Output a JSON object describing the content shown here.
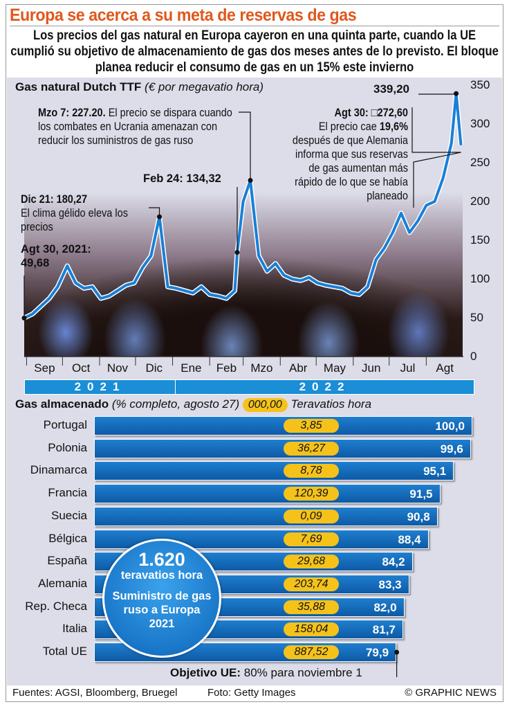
{
  "title": "Europa se acerca a su meta de reservas de gas",
  "subtitle": "Los precios del gas natural en Europa cayeron en una quinta parte, cuando la UE cumplió su objetivo de almacenamiento de gas dos meses antes de lo previsto. El bloque planea reducir el consumo de gas en un 15% este invierno",
  "colors": {
    "title": "#e0581c",
    "line": "#1a7fd6",
    "year_bar": "#1a8ed6",
    "bars": "#1565b0",
    "pill": "#f5c21a"
  },
  "chart_data": [
    {
      "type": "line",
      "title": "Gas natural Dutch TTF",
      "unit": "(€ por megavatio hora)",
      "ylim": [
        0,
        350
      ],
      "yticks": [
        "0",
        "50",
        "100",
        "150",
        "200",
        "250",
        "300",
        "350"
      ],
      "xlim": [
        "2021-08-30",
        "2022-09-01"
      ],
      "months": [
        "Sep",
        "Oct",
        "Nov",
        "Dic",
        "Ene",
        "Feb",
        "Mzo",
        "Abr",
        "May",
        "Jun",
        "Jul",
        "Agt"
      ],
      "years": [
        "2021",
        "2022"
      ],
      "series": [
        {
          "points": [
            [
              "2021-08-30",
              49.68
            ],
            [
              "2021-09-06",
              55
            ],
            [
              "2021-09-13",
              65
            ],
            [
              "2021-09-20",
              75
            ],
            [
              "2021-09-27",
              90
            ],
            [
              "2021-10-05",
              117
            ],
            [
              "2021-10-12",
              95
            ],
            [
              "2021-10-19",
              88
            ],
            [
              "2021-10-26",
              90
            ],
            [
              "2021-11-02",
              75
            ],
            [
              "2021-11-09",
              78
            ],
            [
              "2021-11-16",
              85
            ],
            [
              "2021-11-23",
              92
            ],
            [
              "2021-11-30",
              95
            ],
            [
              "2021-12-07",
              115
            ],
            [
              "2021-12-14",
              130
            ],
            [
              "2021-12-21",
              180.27
            ],
            [
              "2021-12-28",
              90
            ],
            [
              "2022-01-04",
              88
            ],
            [
              "2022-01-11",
              85
            ],
            [
              "2022-01-18",
              82
            ],
            [
              "2022-01-25",
              90
            ],
            [
              "2022-02-01",
              80
            ],
            [
              "2022-02-08",
              78
            ],
            [
              "2022-02-15",
              75
            ],
            [
              "2022-02-22",
              85
            ],
            [
              "2022-02-24",
              134.32
            ],
            [
              "2022-03-01",
              200
            ],
            [
              "2022-03-07",
              227.2
            ],
            [
              "2022-03-14",
              130
            ],
            [
              "2022-03-21",
              110
            ],
            [
              "2022-03-28",
              120
            ],
            [
              "2022-04-04",
              105
            ],
            [
              "2022-04-11",
              100
            ],
            [
              "2022-04-18",
              98
            ],
            [
              "2022-04-25",
              102
            ],
            [
              "2022-05-02",
              95
            ],
            [
              "2022-05-09",
              92
            ],
            [
              "2022-05-16",
              90
            ],
            [
              "2022-05-23",
              88
            ],
            [
              "2022-05-30",
              82
            ],
            [
              "2022-06-06",
              80
            ],
            [
              "2022-06-13",
              90
            ],
            [
              "2022-06-20",
              125
            ],
            [
              "2022-06-27",
              140
            ],
            [
              "2022-07-04",
              160
            ],
            [
              "2022-07-11",
              185
            ],
            [
              "2022-07-18",
              160
            ],
            [
              "2022-07-25",
              175
            ],
            [
              "2022-08-01",
              195
            ],
            [
              "2022-08-08",
              200
            ],
            [
              "2022-08-15",
              230
            ],
            [
              "2022-08-22",
              275
            ],
            [
              "2022-08-26",
              339.2
            ],
            [
              "2022-08-30",
              272.6
            ]
          ]
        }
      ],
      "annotations": {
        "start": {
          "head": "Agt 30, 2021:",
          "value": "49,68"
        },
        "dec": {
          "head": "Dic 21: 180,27",
          "text": "El clima gélido eleva los precios"
        },
        "feb": {
          "head": "Feb 24: 134,32"
        },
        "mar": {
          "head": "Mzo 7: 227.20.",
          "text": "El precio se dispara cuando los combates en Ucrania amenazan con reducir los suministros de gas ruso"
        },
        "peak": {
          "value": "339,20"
        },
        "end": {
          "head": "Agt 30: □272,60",
          "text1": "El precio cae",
          "pct": "19,6%",
          "text2": "después de que Alemania informa que sus reservas de gas aumentan más rápido de lo que se había planeado"
        }
      }
    },
    {
      "type": "bar",
      "title": "Gas almacenado",
      "subtitle": "(% completo, agosto 27)",
      "pill_example": "000,00",
      "pill_unit": "Teravatios hora",
      "categories": [
        "Portugal",
        "Polonia",
        "Dinamarca",
        "Francia",
        "Suecia",
        "Bélgica",
        "España",
        "Alemania",
        "Rep. Checa",
        "Italia",
        "Total UE"
      ],
      "values": [
        "100,0",
        "99,6",
        "95,1",
        "91,5",
        "90,8",
        "88,4",
        "84,2",
        "83,3",
        "82,0",
        "81,7",
        "79,9"
      ],
      "pct": [
        100.0,
        99.6,
        95.1,
        91.5,
        90.8,
        88.4,
        84.2,
        83.3,
        82.0,
        81.7,
        79.9
      ],
      "twh": [
        "3,85",
        "36,27",
        "8,78",
        "120,39",
        "0,09",
        "7,69",
        "29,68",
        "203,74",
        "35,88",
        "158,04",
        "887,52"
      ],
      "xlim": [
        0,
        100
      ],
      "objective": {
        "value": 80,
        "label": "Objetivo UE:",
        "text": "80% para noviembre 1"
      }
    }
  ],
  "bubble": {
    "value": "1.620",
    "unit": "teravatios hora",
    "desc": "Suministro de gas ruso a Europa 2021"
  },
  "footer": {
    "sources": "Fuentes: AGSI, Bloomberg, Bruegel",
    "photo": "Foto: Getty Images",
    "credit": "© GRAPHIC NEWS"
  }
}
